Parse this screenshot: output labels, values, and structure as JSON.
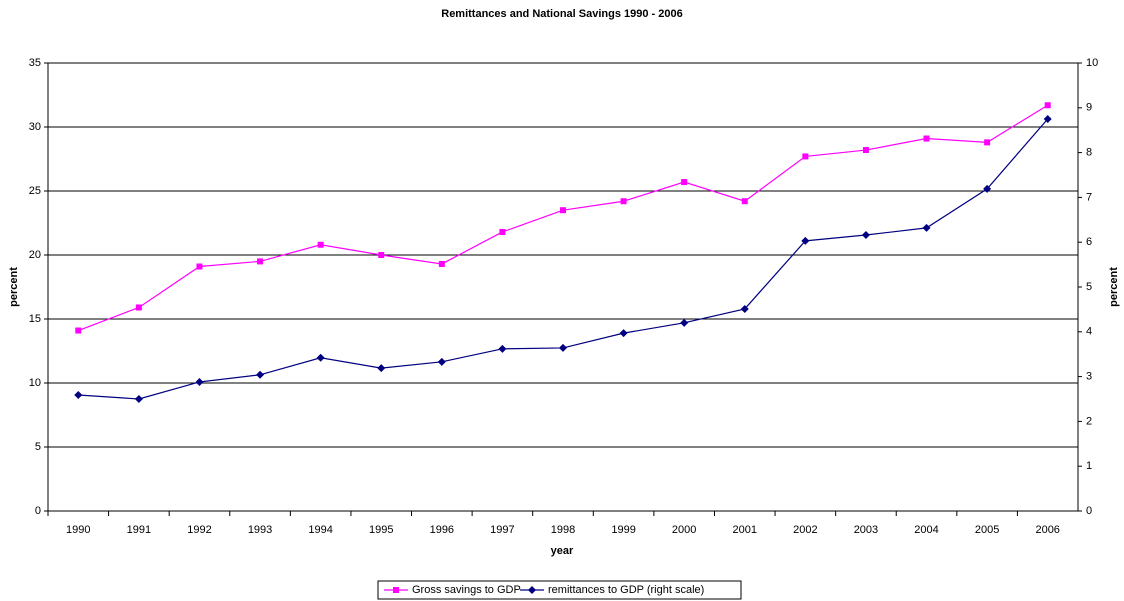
{
  "chart_data": {
    "type": "line",
    "title": "Remittances and National Savings 1990 - 2006",
    "x_label": "year",
    "y_label": "percent",
    "y2_label": "percent",
    "categories": [
      "1990",
      "1991",
      "1992",
      "1993",
      "1994",
      "1995",
      "1996",
      "1997",
      "1998",
      "1999",
      "2000",
      "2001",
      "2002",
      "2003",
      "2004",
      "2005",
      "2006"
    ],
    "series": [
      {
        "name": "Gross savings to GDP",
        "color": "#ff00ff",
        "marker": "square",
        "values": [
          14.1,
          15.9,
          19.1,
          19.5,
          20.8,
          20.0,
          19.3,
          21.8,
          23.5,
          24.2,
          25.7,
          24.2,
          27.7,
          28.2,
          29.1,
          28.8,
          31.7
        ]
      },
      {
        "name": "remittances to GDP (right scale)",
        "color": "#000080",
        "marker": "diamond",
        "axis": "y2",
        "values": [
          2.59,
          2.5,
          2.88,
          3.04,
          3.42,
          3.19,
          3.33,
          3.62,
          3.64,
          3.97,
          4.2,
          4.51,
          6.03,
          6.16,
          6.32,
          7.19,
          8.75
        ]
      }
    ],
    "ylim": [
      0,
      35
    ],
    "yticks": [
      0,
      5,
      10,
      15,
      20,
      25,
      30,
      35
    ],
    "y2lim": [
      0,
      10
    ],
    "y2ticks": [
      0,
      1,
      2,
      3,
      4,
      5,
      6,
      7,
      8,
      9,
      10
    ],
    "grid": true,
    "legend": "bottom"
  }
}
